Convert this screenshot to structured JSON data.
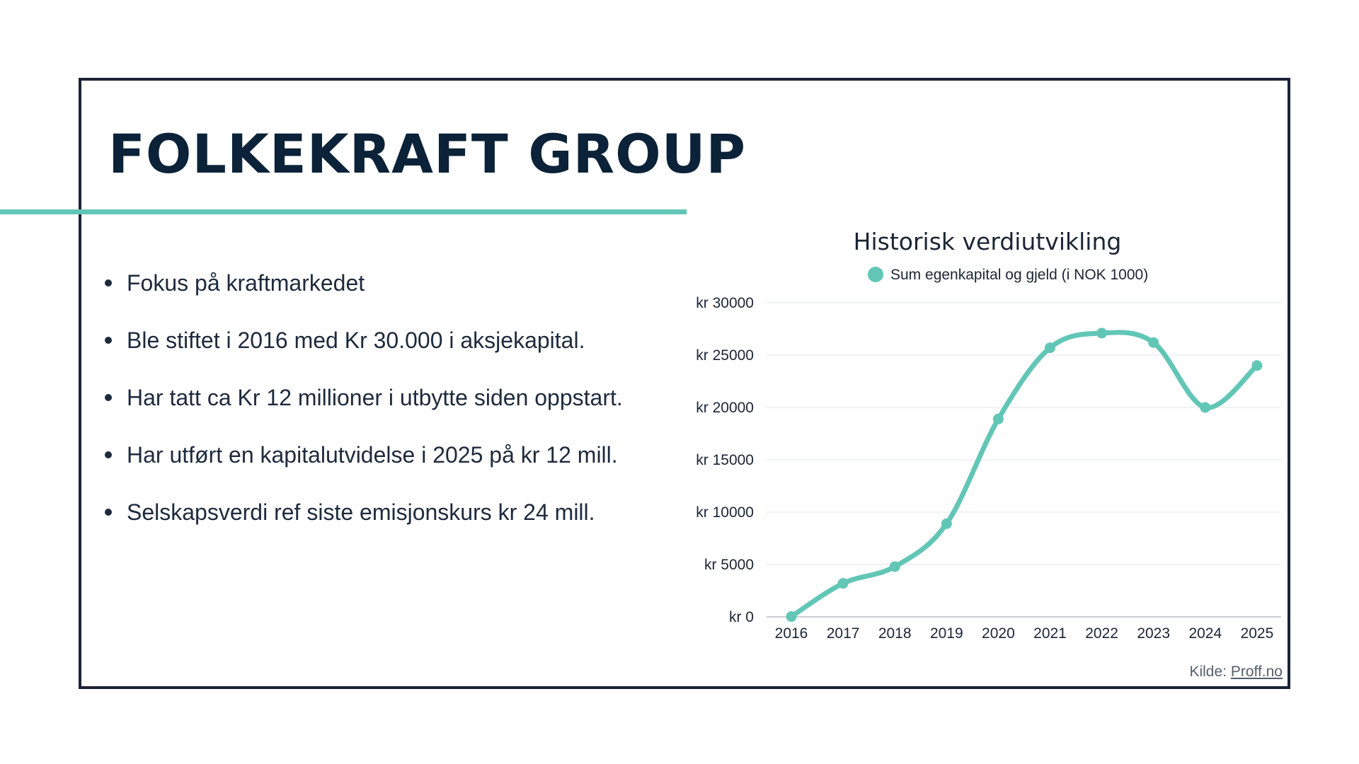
{
  "title": "FOLKEKRAFT GROUP",
  "bullets": [
    "Fokus på kraftmarkedet",
    "Ble stiftet i 2016 med Kr 30.000 i aksjekapital.",
    "Har tatt ca Kr 12 millioner i utbytte siden oppstart.",
    "Har utført en kapitalutvidelse i 2025 på kr 12 mill.",
    "Selskapsverdi ref siste emisjonskurs kr 24 mill."
  ],
  "source": {
    "label": "Kilde:",
    "link_text": "Proff.no"
  },
  "colors": {
    "accent": "#62c6b6",
    "title": "#0b2238",
    "frame": "#1c2236"
  },
  "chart_data": {
    "type": "line",
    "title": "Historisk verdiutvikling",
    "x": [
      "2016",
      "2017",
      "2018",
      "2019",
      "2020",
      "2021",
      "2022",
      "2023",
      "2024",
      "2025"
    ],
    "series": [
      {
        "name": "Sum egenkapital og gjeld (i NOK 1000)",
        "values": [
          30,
          3200,
          4800,
          8900,
          18900,
          25700,
          27100,
          26200,
          20000,
          24000
        ]
      }
    ],
    "ylim": [
      0,
      30000
    ],
    "yticks": [
      0,
      5000,
      10000,
      15000,
      20000,
      25000,
      30000
    ],
    "ytick_labels": [
      "kr 0",
      "kr 5000",
      "kr 10000",
      "kr 15000",
      "kr 20000",
      "kr 25000",
      "kr 30000"
    ],
    "xlabel": "",
    "ylabel": "",
    "grid": true,
    "legend": "top",
    "smooth": true
  }
}
